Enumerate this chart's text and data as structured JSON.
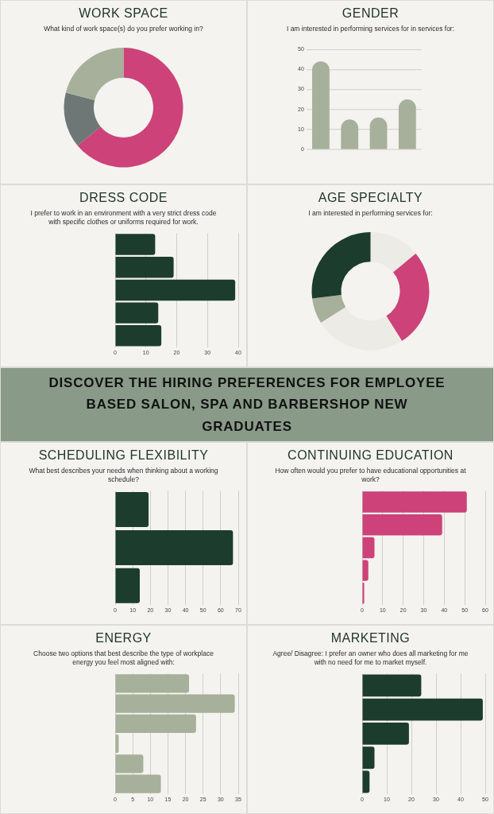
{
  "chart_data": [
    {
      "type": "donut",
      "title": "WORK SPACE",
      "subtitle": "What kind of work space(s) do you prefer working in?",
      "categories": [
        null,
        null,
        null
      ],
      "values": [
        64,
        15,
        21
      ],
      "colors": [
        "#cc4279",
        "#6e7775",
        "#a7b09a"
      ]
    },
    {
      "type": "bar",
      "title": "GENDER",
      "subtitle": "I am interested in performing services for in services for:",
      "categories": [
        null,
        null,
        null,
        null
      ],
      "values": [
        44,
        15,
        16,
        25
      ],
      "color": "#a7b09a",
      "ylim": [
        0,
        50
      ],
      "yticks": [
        0,
        10,
        20,
        30,
        40,
        50
      ],
      "grid": "y"
    },
    {
      "type": "bar",
      "orientation": "horizontal",
      "title": "DRESS CODE",
      "subtitle": "I prefer to work in an environment with a very strict dress code with specific clothes or uniforms required for work.",
      "categories": [
        null,
        null,
        null,
        null,
        null
      ],
      "values": [
        13,
        19,
        39,
        14,
        15
      ],
      "color": "#1c3d2d",
      "xlim": [
        0,
        40
      ],
      "xticks": [
        0,
        10,
        20,
        30,
        40
      ],
      "grid": "x"
    },
    {
      "type": "donut",
      "title": "AGE SPECIALTY",
      "subtitle": "I am interested in performing services for:",
      "categories": [
        null,
        null,
        null,
        null,
        null
      ],
      "values": [
        14,
        27,
        25,
        7,
        27
      ],
      "colors": [
        "#ecebe6",
        "#cc4279",
        "#ecebe6",
        "#a7b09a",
        "#1c3d2d"
      ]
    },
    {
      "type": "other",
      "title": "DISCOVER THE HIRING PREFERENCES FOR EMPLOYEE BASED SALON, SPA AND BARBERSHOP NEW GRADUATES"
    },
    {
      "type": "bar",
      "orientation": "horizontal",
      "title": "SCHEDULING FLEXIBILITY",
      "subtitle": "What best describes your needs when thinking about a working schedule?",
      "categories": [
        null,
        null,
        null
      ],
      "values": [
        19,
        67,
        14
      ],
      "color": "#1c3d2d",
      "xlim": [
        0,
        70
      ],
      "xticks": [
        0,
        10,
        20,
        30,
        40,
        50,
        60,
        70
      ],
      "grid": "x"
    },
    {
      "type": "bar",
      "orientation": "horizontal",
      "title": "CONTINUING EDUCATION",
      "subtitle": "How often would you prefer to have educational opportunities at work?",
      "categories": [
        null,
        null,
        null,
        null,
        null
      ],
      "values": [
        51,
        39,
        6,
        3,
        1
      ],
      "color": "#cc4279",
      "xlim": [
        0,
        60
      ],
      "xticks": [
        0,
        10,
        20,
        30,
        40,
        50,
        60
      ],
      "grid": "x"
    },
    {
      "type": "bar",
      "orientation": "horizontal",
      "title": "ENERGY",
      "subtitle": "Choose two options that best describe the type of workplace energy you feel most aligned with:",
      "categories": [
        null,
        null,
        null,
        null,
        null,
        null
      ],
      "values": [
        21,
        34,
        23,
        1,
        8,
        13
      ],
      "color": "#a7b09a",
      "xlim": [
        0,
        35
      ],
      "xticks": [
        0,
        5,
        10,
        15,
        20,
        25,
        30,
        35
      ],
      "grid": "x"
    },
    {
      "type": "bar",
      "orientation": "horizontal",
      "title": "MARKETING",
      "subtitle": "Agree/ Disagree: I prefer an owner who does all marketing for me with no need for me to market myself.",
      "categories": [
        null,
        null,
        null,
        null,
        null
      ],
      "values": [
        24,
        49,
        19,
        5,
        3
      ],
      "color": "#1c3d2d",
      "xlim": [
        0,
        50
      ],
      "xticks": [
        0,
        10,
        20,
        30,
        40,
        50
      ],
      "grid": "x"
    }
  ]
}
